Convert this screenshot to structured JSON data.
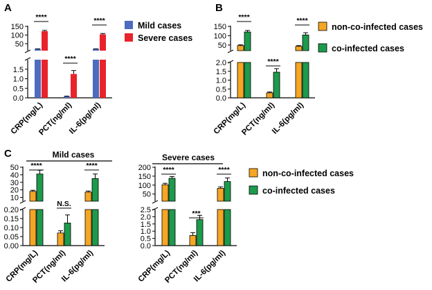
{
  "colors": {
    "blue": "#4D6BBF",
    "red": "#E8232B",
    "orange": "#F5A623",
    "green": "#1E9A4C"
  },
  "chart_data": [
    {
      "panel": "A",
      "type": "bar",
      "axis_break": true,
      "categories": [
        "CRP(mg/L)",
        "PCT(ng/ml)",
        "IL-6(pg/ml)"
      ],
      "series": [
        {
          "name": "Mild cases",
          "color_key": "blue",
          "values": [
            20,
            0.08,
            20
          ],
          "errors": [
            0.5,
            0.01,
            0.5
          ]
        },
        {
          "name": "Severe cases",
          "color_key": "red",
          "values": [
            122,
            1.25,
            104
          ],
          "errors": [
            5,
            0.18,
            5
          ]
        }
      ],
      "lower_ylim": [
        0,
        2.0
      ],
      "lower_ticks": [
        "0.0",
        "0.5",
        "1.0",
        "1.5"
      ],
      "upper_ylim": [
        10,
        150
      ],
      "upper_ticks": [
        "50",
        "100",
        "150"
      ],
      "significance": [
        "****",
        "****",
        "****"
      ]
    },
    {
      "panel": "B",
      "type": "bar",
      "axis_break": true,
      "categories": [
        "CRP(mg/L)",
        "PCT(ng/ml)",
        "IL-6(pg/ml)"
      ],
      "series": [
        {
          "name": "non-co-infected cases",
          "color_key": "orange",
          "values": [
            47,
            0.28,
            43
          ],
          "errors": [
            4,
            0.05,
            4
          ]
        },
        {
          "name": "co-infected cases",
          "color_key": "green",
          "values": [
            120,
            1.45,
            104
          ],
          "errors": [
            8,
            0.2,
            12
          ]
        }
      ],
      "lower_ylim": [
        0,
        2.0
      ],
      "lower_ticks": [
        "0.0",
        "0.5",
        "1.0",
        "1.5",
        "2.0"
      ],
      "upper_ylim": [
        20,
        150
      ],
      "upper_ticks": [
        "50",
        "100",
        "150"
      ],
      "significance": [
        "****",
        "****",
        "****"
      ]
    },
    {
      "panel": "C1",
      "type": "bar",
      "axis_break": true,
      "title": "Mild cases",
      "categories": [
        "CRP(mg/L)",
        "PCT(ng/ml)",
        "IL-6(pg/ml)"
      ],
      "series": [
        {
          "name": "non-co-infected cases",
          "color_key": "orange",
          "values": [
            18,
            0.07,
            17
          ],
          "errors": [
            1.5,
            0.012,
            1.5
          ]
        },
        {
          "name": "co-infected cases",
          "color_key": "green",
          "values": [
            41,
            0.125,
            35
          ],
          "errors": [
            5,
            0.045,
            6
          ]
        }
      ],
      "lower_ylim": [
        0,
        0.2
      ],
      "lower_ticks": [
        "0.00",
        "0.05",
        "0.10",
        "0.15",
        "0.20"
      ],
      "upper_ylim": [
        5,
        50
      ],
      "upper_ticks": [
        "10",
        "20",
        "30",
        "40",
        "50"
      ],
      "significance": [
        "****",
        "N.S.",
        "****"
      ]
    },
    {
      "panel": "C2",
      "type": "bar",
      "axis_break": true,
      "title": "Severe cases",
      "categories": [
        "CRP(mg/L)",
        "PCT(ng/ml)",
        "IL-6(pg/ml)"
      ],
      "series": [
        {
          "name": "non-co-infected cases",
          "color_key": "orange",
          "values": [
            102,
            0.7,
            82
          ],
          "errors": [
            8,
            0.2,
            8
          ]
        },
        {
          "name": "co-infected cases",
          "color_key": "green",
          "values": [
            138,
            1.8,
            120
          ],
          "errors": [
            10,
            0.3,
            20
          ]
        }
      ],
      "lower_ylim": [
        0,
        2.5
      ],
      "lower_ticks": [
        "0.0",
        "0.5",
        "1.0",
        "1.5",
        "2.0",
        "2.5"
      ],
      "upper_ylim": [
        10,
        200
      ],
      "upper_ticks": [
        "50",
        "100",
        "150",
        "200"
      ],
      "significance": [
        "****",
        "***",
        "****"
      ]
    }
  ],
  "legends": {
    "A": [
      "Mild cases",
      "Severe cases"
    ],
    "B": [
      "non-co-infected cases",
      "co-infected cases"
    ],
    "C": [
      "non-co-infected cases",
      "co-infected cases"
    ]
  },
  "panel_letters": [
    "A",
    "B",
    "C"
  ]
}
